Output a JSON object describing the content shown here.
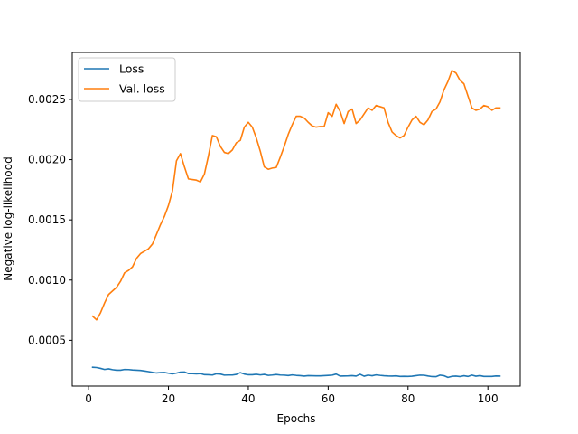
{
  "chart_data": {
    "type": "line",
    "title": "",
    "xlabel": "Epochs",
    "ylabel": "Negative log-likelihood",
    "xlim": [
      -4.1,
      108.1
    ],
    "ylim": [
      0.00012,
      0.00289
    ],
    "xticks": [
      0,
      20,
      40,
      60,
      80,
      100
    ],
    "yticks": [
      0.0005,
      0.001,
      0.0015,
      0.002,
      0.0025
    ],
    "ytick_labels": [
      "0.0005",
      "0.0010",
      "0.0015",
      "0.0020",
      "0.0025"
    ],
    "xtick_labels": [
      "0",
      "20",
      "40",
      "60",
      "80",
      "100"
    ],
    "grid": false,
    "legend": "top-left",
    "x": [
      1,
      2,
      3,
      4,
      5,
      6,
      7,
      8,
      9,
      10,
      11,
      12,
      13,
      14,
      15,
      16,
      17,
      18,
      19,
      20,
      21,
      22,
      23,
      24,
      25,
      26,
      27,
      28,
      29,
      30,
      31,
      32,
      33,
      34,
      35,
      36,
      37,
      38,
      39,
      40,
      41,
      42,
      43,
      44,
      45,
      46,
      47,
      48,
      49,
      50,
      51,
      52,
      53,
      54,
      55,
      56,
      57,
      58,
      59,
      60,
      61,
      62,
      63,
      64,
      65,
      66,
      67,
      68,
      69,
      70,
      71,
      72,
      73,
      74,
      75,
      76,
      77,
      78,
      79,
      80,
      81,
      82,
      83,
      84,
      85,
      86,
      87,
      88,
      89,
      90,
      91,
      92,
      93,
      94,
      95,
      96,
      97,
      98,
      99,
      100,
      101,
      102,
      103
    ],
    "series": [
      {
        "name": "Loss",
        "color": "#1f77b4",
        "values": [
          0.000276,
          0.000274,
          0.000267,
          0.000258,
          0.000263,
          0.000256,
          0.000252,
          0.000252,
          0.000258,
          0.000257,
          0.000254,
          0.000252,
          0.00025,
          0.000245,
          0.00024,
          0.000234,
          0.000229,
          0.000232,
          0.000233,
          0.000227,
          0.000222,
          0.000228,
          0.000236,
          0.000237,
          0.000224,
          0.000224,
          0.000222,
          0.000224,
          0.000215,
          0.000214,
          0.000212,
          0.000222,
          0.00022,
          0.000211,
          0.000212,
          0.000212,
          0.000217,
          0.000232,
          0.00022,
          0.000214,
          0.000214,
          0.000218,
          0.000213,
          0.000217,
          0.000209,
          0.000212,
          0.000216,
          0.000212,
          0.000211,
          0.000208,
          0.000213,
          0.000209,
          0.000207,
          0.000203,
          0.000207,
          0.000206,
          0.000205,
          0.000205,
          0.000207,
          0.000209,
          0.000211,
          0.00022,
          0.000203,
          0.000204,
          0.000205,
          0.000207,
          0.000203,
          0.000218,
          0.000202,
          0.000211,
          0.000206,
          0.000213,
          0.000209,
          0.000206,
          0.000204,
          0.000203,
          0.000205,
          0.0002,
          0.000201,
          0.0002,
          0.000202,
          0.000207,
          0.000211,
          0.00021,
          0.000204,
          0.000199,
          0.000198,
          0.000211,
          0.000206,
          0.000192,
          0.000201,
          0.000203,
          0.000199,
          0.000206,
          0.0002,
          0.000211,
          0.000202,
          0.000207,
          0.0002,
          0.0002,
          0.0002,
          0.000204,
          0.000203
        ]
      },
      {
        "name": "Val. loss",
        "color": "#ff7f0e",
        "values": [
          0.0007,
          0.00067,
          0.00073,
          0.00081,
          0.00088,
          0.00091,
          0.00094,
          0.00099,
          0.00106,
          0.00108,
          0.00111,
          0.00118,
          0.00122,
          0.00124,
          0.00126,
          0.0013,
          0.00138,
          0.00146,
          0.00153,
          0.00162,
          0.00174,
          0.00199,
          0.00205,
          0.00194,
          0.00184,
          0.001835,
          0.00183,
          0.001815,
          0.00188,
          0.00203,
          0.0022,
          0.00219,
          0.00211,
          0.00206,
          0.00205,
          0.00208,
          0.00214,
          0.00216,
          0.00227,
          0.00231,
          0.00227,
          0.00218,
          0.00207,
          0.00194,
          0.00192,
          0.00193,
          0.001935,
          0.00202,
          0.00211,
          0.00221,
          0.00229,
          0.00236,
          0.00236,
          0.002345,
          0.00231,
          0.00228,
          0.00227,
          0.002275,
          0.002275,
          0.00239,
          0.00236,
          0.00246,
          0.0024,
          0.0023,
          0.0024,
          0.00242,
          0.0023,
          0.00233,
          0.00238,
          0.00243,
          0.00241,
          0.00245,
          0.00244,
          0.00243,
          0.00231,
          0.00223,
          0.0022,
          0.00218,
          0.0022,
          0.00227,
          0.00233,
          0.00236,
          0.00231,
          0.00229,
          0.00233,
          0.0024,
          0.00242,
          0.00248,
          0.00258,
          0.00265,
          0.00274,
          0.00272,
          0.00266,
          0.00263,
          0.00253,
          0.00243,
          0.00241,
          0.00242,
          0.00245,
          0.00244,
          0.00241,
          0.00243,
          0.00243
        ]
      }
    ]
  }
}
